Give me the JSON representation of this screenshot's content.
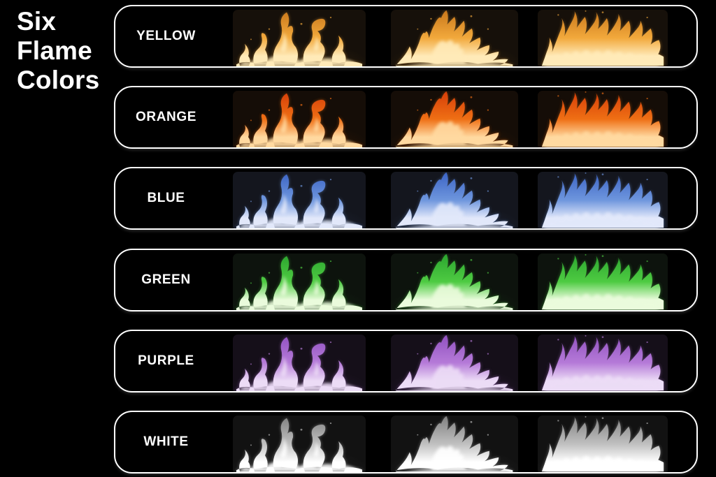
{
  "title": {
    "lines": [
      "Six",
      "Flame",
      "Colors"
    ]
  },
  "panel": {
    "border_color": "#ffffff",
    "background": "#000000"
  },
  "rows": [
    {
      "label": "YELLOW",
      "colors": {
        "tip": "#c8761a",
        "main": "#f2a93c",
        "base": "#ffeab8",
        "tile_bg": "#16100a"
      }
    },
    {
      "label": "ORANGE",
      "colors": {
        "tip": "#d53c08",
        "main": "#ef6f14",
        "base": "#ffd9a0",
        "tile_bg": "#150d07"
      }
    },
    {
      "label": "BLUE",
      "colors": {
        "tip": "#3a62c4",
        "main": "#6e96dd",
        "base": "#e2e8fa",
        "tile_bg": "#14161e"
      }
    },
    {
      "label": "GREEN",
      "colors": {
        "tip": "#2aa42e",
        "main": "#4ecb42",
        "base": "#eafbdc",
        "tile_bg": "#0d130d"
      }
    },
    {
      "label": "PURPLE",
      "colors": {
        "tip": "#9050c0",
        "main": "#b57ad8",
        "base": "#ecdcf6",
        "tile_bg": "#150f19"
      }
    },
    {
      "label": "WHITE",
      "colors": {
        "tip": "#7f7f7f",
        "main": "#bfbfbf",
        "base": "#ffffff",
        "tile_bg": "#121212"
      }
    }
  ]
}
